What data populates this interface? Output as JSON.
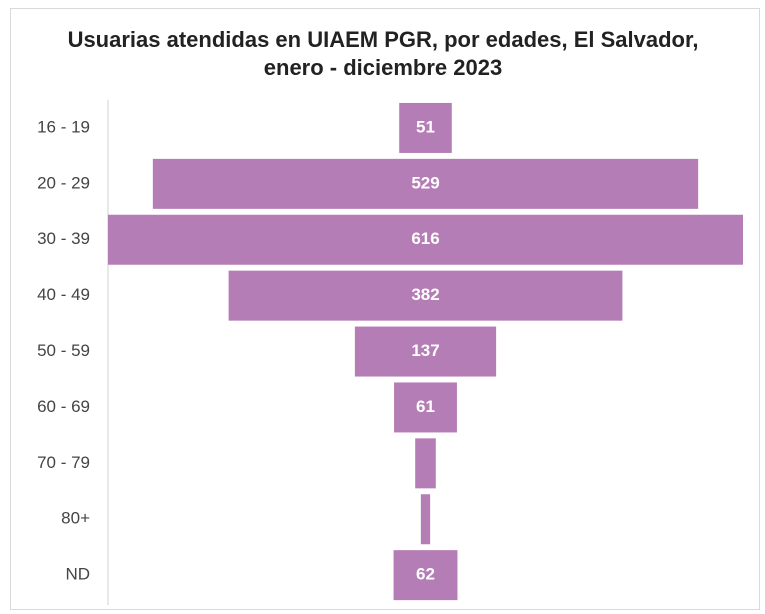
{
  "chart_data": {
    "type": "funnel",
    "title": "Usuarias atendidas en UIAEM PGR, por edades, El Salvador, enero - diciembre 2023",
    "categories": [
      "16 - 19",
      "20 - 29",
      "30 - 39",
      "40 - 49",
      "50 - 59",
      "60 - 69",
      "70 - 79",
      "80+",
      "ND"
    ],
    "values": [
      51,
      529,
      616,
      382,
      137,
      61,
      20,
      9,
      62
    ],
    "color": "#b57db5"
  }
}
